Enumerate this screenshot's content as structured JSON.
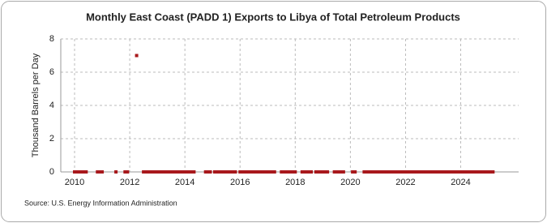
{
  "chart_data": {
    "type": "scatter",
    "title": "Monthly East Coast (PADD 1) Exports to Libya of Total Petroleum Products",
    "y_label": "Thousand Barrels per Day",
    "source": "Source: U.S. Energy Information Administration",
    "color": "#a8191c",
    "grid": true,
    "xlim": [
      2009.5,
      2026.1
    ],
    "ylim": [
      0,
      8
    ],
    "xticks": [
      2010,
      2012,
      2014,
      2016,
      2018,
      2020,
      2022,
      2024
    ],
    "yticks": [
      0,
      2,
      4,
      6,
      8
    ],
    "x": [
      2010.0,
      2010.08,
      2010.17,
      2010.25,
      2010.33,
      2010.42,
      2010.83,
      2010.92,
      2011.0,
      2011.5,
      2011.83,
      2011.92,
      2012.25,
      2012.5,
      2012.58,
      2012.67,
      2012.75,
      2012.83,
      2012.92,
      2013.0,
      2013.08,
      2013.17,
      2013.25,
      2013.33,
      2013.42,
      2013.5,
      2013.58,
      2013.67,
      2013.75,
      2013.83,
      2013.92,
      2014.0,
      2014.08,
      2014.17,
      2014.25,
      2014.33,
      2014.75,
      2014.83,
      2014.92,
      2015.08,
      2015.17,
      2015.25,
      2015.33,
      2015.42,
      2015.5,
      2015.58,
      2015.67,
      2015.75,
      2015.83,
      2016.0,
      2016.08,
      2016.17,
      2016.25,
      2016.33,
      2016.42,
      2016.5,
      2016.58,
      2016.67,
      2016.75,
      2016.83,
      2016.92,
      2017.0,
      2017.08,
      2017.17,
      2017.25,
      2017.5,
      2017.58,
      2017.67,
      2017.75,
      2017.83,
      2017.92,
      2018.0,
      2018.25,
      2018.33,
      2018.42,
      2018.5,
      2018.58,
      2018.75,
      2018.83,
      2018.92,
      2019.0,
      2019.08,
      2019.17,
      2019.42,
      2019.5,
      2019.58,
      2019.67,
      2019.75,
      2020.08,
      2020.17,
      2020.5,
      2020.58,
      2020.67,
      2020.75,
      2020.83,
      2020.92,
      2021.0,
      2021.08,
      2021.17,
      2021.25,
      2021.33,
      2021.42,
      2021.5,
      2021.58,
      2021.67,
      2021.75,
      2021.83,
      2021.92,
      2022.0,
      2022.08,
      2022.17,
      2022.25,
      2022.33,
      2022.42,
      2022.5,
      2022.58,
      2022.67,
      2022.75,
      2022.83,
      2022.92,
      2023.0,
      2023.08,
      2023.17,
      2023.25,
      2023.33,
      2023.42,
      2023.5,
      2023.58,
      2023.67,
      2023.75,
      2023.83,
      2023.92,
      2024.0,
      2024.08,
      2024.17,
      2024.25,
      2024.33,
      2024.42,
      2024.5,
      2024.58,
      2024.67,
      2024.75,
      2024.83,
      2024.92,
      2025.0,
      2025.08,
      2025.17
    ],
    "values": [
      0,
      0,
      0,
      0,
      0,
      0,
      0,
      0,
      0,
      0,
      0,
      0,
      7,
      0,
      0,
      0,
      0,
      0,
      0,
      0,
      0,
      0,
      0,
      0,
      0,
      0,
      0,
      0,
      0,
      0,
      0,
      0,
      0,
      0,
      0,
      0,
      0,
      0,
      0,
      0,
      0,
      0,
      0,
      0,
      0,
      0,
      0,
      0,
      0,
      0,
      0,
      0,
      0,
      0,
      0,
      0,
      0,
      0,
      0,
      0,
      0,
      0,
      0,
      0,
      0,
      0,
      0,
      0,
      0,
      0,
      0,
      0,
      0,
      0,
      0,
      0,
      0,
      0,
      0,
      0,
      0,
      0,
      0,
      0,
      0,
      0,
      0,
      0,
      0,
      0,
      0,
      0,
      0,
      0,
      0,
      0,
      0,
      0,
      0,
      0,
      0,
      0,
      0,
      0,
      0,
      0,
      0,
      0,
      0,
      0,
      0,
      0,
      0,
      0,
      0,
      0,
      0,
      0,
      0,
      0,
      0,
      0,
      0,
      0,
      0,
      0,
      0,
      0,
      0,
      0,
      0,
      0,
      0,
      0,
      0,
      0,
      0,
      0,
      0,
      0,
      0,
      0,
      0,
      0,
      0,
      0,
      0
    ]
  }
}
